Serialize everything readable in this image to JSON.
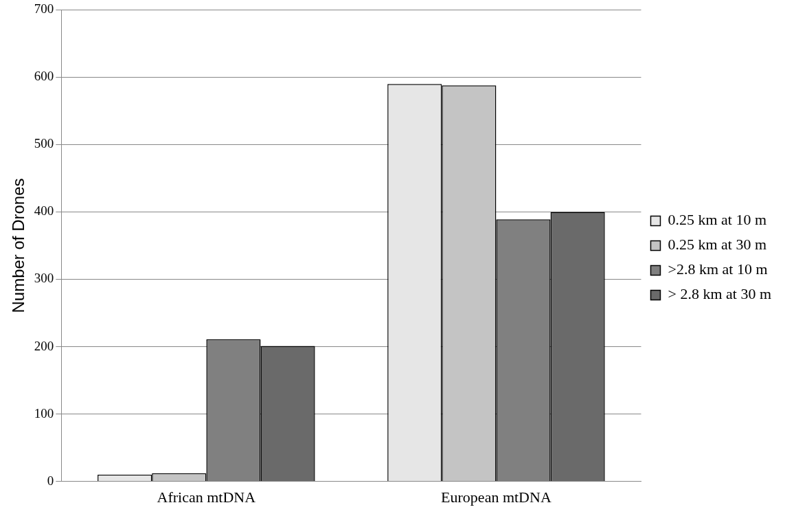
{
  "chart_data": {
    "type": "bar",
    "ylabel": "Number of Drones",
    "categories": [
      "African mtDNA",
      "European mtDNA"
    ],
    "series": [
      {
        "name": "0.25 km at 10 m",
        "color": "#e6e6e6",
        "values": [
          10,
          590
        ]
      },
      {
        "name": "0.25 km at 30 m",
        "color": "#c4c4c4",
        "values": [
          12,
          588
        ]
      },
      {
        "name": ">2.8 km at 10 m",
        "color": "#808080",
        "values": [
          211,
          389
        ]
      },
      {
        "name": "> 2.8 km at 30 m",
        "color": "#6a6a6a",
        "values": [
          201,
          400
        ]
      }
    ],
    "ylim": [
      0,
      700
    ],
    "yticks": [
      0,
      100,
      200,
      300,
      400,
      500,
      600,
      700
    ],
    "grid": "y",
    "legend": "right"
  }
}
